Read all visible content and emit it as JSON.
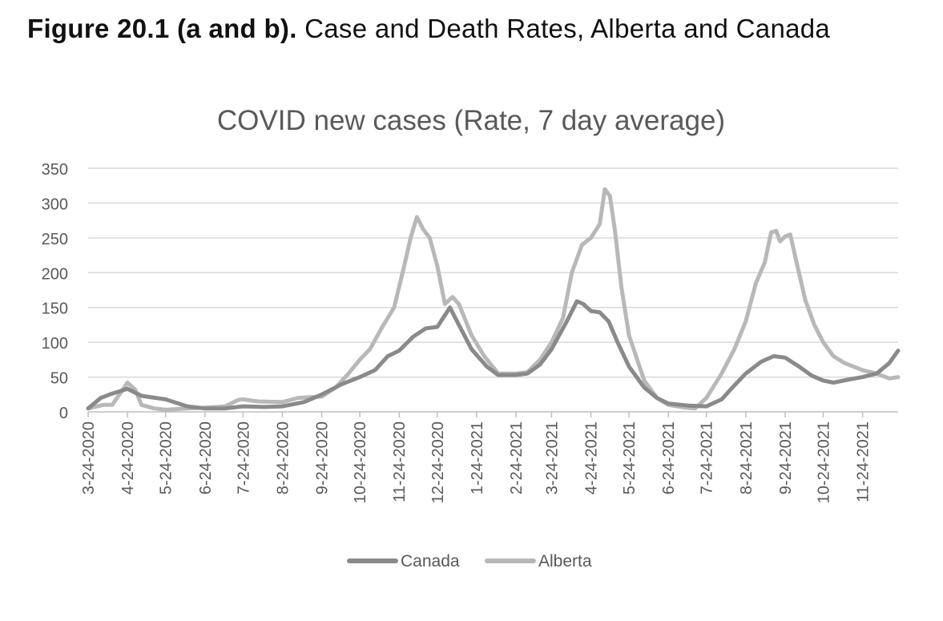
{
  "figure": {
    "label": "Figure 20.1 (a and b).",
    "caption": "Case and Death Rates, Alberta and Canada"
  },
  "chart_data": {
    "type": "line",
    "title": "COVID new cases (Rate, 7 day average)",
    "xlabel": "",
    "ylabel": "",
    "ylim": [
      0,
      350
    ],
    "yticks": [
      0,
      50,
      100,
      150,
      200,
      250,
      300,
      350
    ],
    "grid": true,
    "legend_position": "bottom",
    "x_start_date": "2020-03-24",
    "x_end_date": "2021-12-22",
    "x_tick_labels": [
      "3-24-2020",
      "4-24-2020",
      "5-24-2020",
      "6-24-2020",
      "7-24-2020",
      "8-24-2020",
      "9-24-2020",
      "10-24-2020",
      "11-24-2020",
      "12-24-2020",
      "1-24-2021",
      "2-24-2021",
      "3-24-2021",
      "4-24-2021",
      "5-24-2021",
      "6-24-2021",
      "7-24-2021",
      "8-24-2021",
      "9-24-2021",
      "10-24-2021",
      "11-24-2021"
    ],
    "series": [
      {
        "name": "Canada",
        "color": "#8a8a8a",
        "points": [
          [
            "2020-03-24",
            5
          ],
          [
            "2020-04-03",
            20
          ],
          [
            "2020-04-10",
            25
          ],
          [
            "2020-04-24",
            33
          ],
          [
            "2020-05-05",
            23
          ],
          [
            "2020-05-24",
            18
          ],
          [
            "2020-06-10",
            8
          ],
          [
            "2020-06-24",
            5
          ],
          [
            "2020-07-10",
            5
          ],
          [
            "2020-07-24",
            8
          ],
          [
            "2020-08-10",
            7
          ],
          [
            "2020-08-24",
            8
          ],
          [
            "2020-09-10",
            14
          ],
          [
            "2020-09-24",
            25
          ],
          [
            "2020-10-10",
            40
          ],
          [
            "2020-10-24",
            50
          ],
          [
            "2020-11-05",
            60
          ],
          [
            "2020-11-15",
            80
          ],
          [
            "2020-11-24",
            88
          ],
          [
            "2020-12-05",
            108
          ],
          [
            "2020-12-15",
            120
          ],
          [
            "2020-12-24",
            122
          ],
          [
            "2021-01-03",
            150
          ],
          [
            "2021-01-10",
            125
          ],
          [
            "2021-01-20",
            90
          ],
          [
            "2021-02-01",
            65
          ],
          [
            "2021-02-10",
            53
          ],
          [
            "2021-02-24",
            53
          ],
          [
            "2021-03-05",
            55
          ],
          [
            "2021-03-15",
            68
          ],
          [
            "2021-03-24",
            90
          ],
          [
            "2021-04-05",
            130
          ],
          [
            "2021-04-13",
            159
          ],
          [
            "2021-04-18",
            155
          ],
          [
            "2021-04-24",
            145
          ],
          [
            "2021-05-01",
            143
          ],
          [
            "2021-05-08",
            130
          ],
          [
            "2021-05-15",
            100
          ],
          [
            "2021-05-24",
            65
          ],
          [
            "2021-06-05",
            35
          ],
          [
            "2021-06-15",
            20
          ],
          [
            "2021-06-24",
            12
          ],
          [
            "2021-07-10",
            9
          ],
          [
            "2021-07-24",
            8
          ],
          [
            "2021-08-05",
            18
          ],
          [
            "2021-08-15",
            38
          ],
          [
            "2021-08-24",
            55
          ],
          [
            "2021-09-05",
            72
          ],
          [
            "2021-09-15",
            80
          ],
          [
            "2021-09-24",
            78
          ],
          [
            "2021-10-05",
            65
          ],
          [
            "2021-10-15",
            52
          ],
          [
            "2021-10-24",
            45
          ],
          [
            "2021-11-01",
            42
          ],
          [
            "2021-11-12",
            46
          ],
          [
            "2021-11-24",
            50
          ],
          [
            "2021-12-05",
            55
          ],
          [
            "2021-12-15",
            70
          ],
          [
            "2021-12-22",
            88
          ]
        ]
      },
      {
        "name": "Alberta",
        "color": "#b8b8b8",
        "points": [
          [
            "2020-03-24",
            5
          ],
          [
            "2020-04-05",
            10
          ],
          [
            "2020-04-12",
            10
          ],
          [
            "2020-04-24",
            42
          ],
          [
            "2020-04-30",
            32
          ],
          [
            "2020-05-05",
            10
          ],
          [
            "2020-05-15",
            5
          ],
          [
            "2020-05-24",
            3
          ],
          [
            "2020-06-10",
            5
          ],
          [
            "2020-06-24",
            6
          ],
          [
            "2020-07-10",
            8
          ],
          [
            "2020-07-20",
            17
          ],
          [
            "2020-07-24",
            18
          ],
          [
            "2020-08-05",
            15
          ],
          [
            "2020-08-24",
            14
          ],
          [
            "2020-09-05",
            20
          ],
          [
            "2020-09-24",
            22
          ],
          [
            "2020-10-05",
            35
          ],
          [
            "2020-10-15",
            55
          ],
          [
            "2020-10-24",
            75
          ],
          [
            "2020-11-01",
            90
          ],
          [
            "2020-11-10",
            120
          ],
          [
            "2020-11-20",
            150
          ],
          [
            "2020-11-28",
            210
          ],
          [
            "2020-12-03",
            250
          ],
          [
            "2020-12-08",
            280
          ],
          [
            "2020-12-13",
            262
          ],
          [
            "2020-12-18",
            250
          ],
          [
            "2020-12-24",
            210
          ],
          [
            "2020-12-30",
            155
          ],
          [
            "2021-01-05",
            165
          ],
          [
            "2021-01-10",
            155
          ],
          [
            "2021-01-20",
            110
          ],
          [
            "2021-01-30",
            80
          ],
          [
            "2021-02-10",
            55
          ],
          [
            "2021-02-24",
            55
          ],
          [
            "2021-03-05",
            57
          ],
          [
            "2021-03-15",
            75
          ],
          [
            "2021-03-24",
            100
          ],
          [
            "2021-04-02",
            135
          ],
          [
            "2021-04-09",
            200
          ],
          [
            "2021-04-17",
            240
          ],
          [
            "2021-04-24",
            250
          ],
          [
            "2021-05-01",
            270
          ],
          [
            "2021-05-05",
            320
          ],
          [
            "2021-05-09",
            310
          ],
          [
            "2021-05-13",
            260
          ],
          [
            "2021-05-18",
            180
          ],
          [
            "2021-05-24",
            110
          ],
          [
            "2021-06-05",
            45
          ],
          [
            "2021-06-15",
            20
          ],
          [
            "2021-06-24",
            10
          ],
          [
            "2021-07-08",
            6
          ],
          [
            "2021-07-15",
            5
          ],
          [
            "2021-07-24",
            20
          ],
          [
            "2021-08-05",
            55
          ],
          [
            "2021-08-15",
            90
          ],
          [
            "2021-08-24",
            130
          ],
          [
            "2021-09-01",
            185
          ],
          [
            "2021-09-08",
            215
          ],
          [
            "2021-09-13",
            258
          ],
          [
            "2021-09-17",
            260
          ],
          [
            "2021-09-20",
            245
          ],
          [
            "2021-09-24",
            252
          ],
          [
            "2021-09-28",
            255
          ],
          [
            "2021-10-03",
            215
          ],
          [
            "2021-10-10",
            160
          ],
          [
            "2021-10-17",
            125
          ],
          [
            "2021-10-24",
            100
          ],
          [
            "2021-11-01",
            80
          ],
          [
            "2021-11-10",
            70
          ],
          [
            "2021-11-24",
            60
          ],
          [
            "2021-12-05",
            55
          ],
          [
            "2021-12-15",
            48
          ],
          [
            "2021-12-22",
            50
          ]
        ]
      }
    ]
  }
}
